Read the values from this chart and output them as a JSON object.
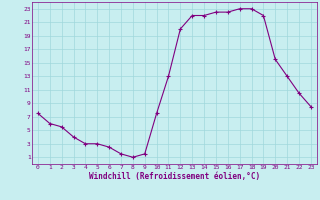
{
  "hours": [
    0,
    1,
    2,
    3,
    4,
    5,
    6,
    7,
    8,
    9,
    10,
    11,
    12,
    13,
    14,
    15,
    16,
    17,
    18,
    19,
    20,
    21,
    22,
    23
  ],
  "values": [
    7.5,
    6.0,
    5.5,
    4.0,
    3.0,
    3.0,
    2.5,
    1.5,
    1.0,
    1.5,
    7.5,
    13.0,
    20.0,
    22.0,
    22.0,
    22.5,
    22.5,
    23.0,
    23.0,
    22.0,
    15.5,
    13.0,
    10.5,
    8.5
  ],
  "line_color": "#800080",
  "marker_color": "#800080",
  "bg_color": "#c8eef0",
  "grid_color": "#a0d8dc",
  "xlabel": "Windchill (Refroidissement éolien,°C)",
  "ylabel_ticks": [
    1,
    3,
    5,
    7,
    9,
    11,
    13,
    15,
    17,
    19,
    21,
    23
  ],
  "xlim": [
    -0.5,
    23.5
  ],
  "ylim": [
    0,
    24
  ],
  "xticks": [
    0,
    1,
    2,
    3,
    4,
    5,
    6,
    7,
    8,
    9,
    10,
    11,
    12,
    13,
    14,
    15,
    16,
    17,
    18,
    19,
    20,
    21,
    22,
    23
  ]
}
